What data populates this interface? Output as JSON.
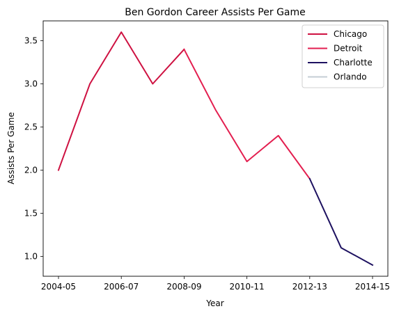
{
  "chart_data": {
    "type": "line",
    "title": "Ben Gordon Career Assists Per Game",
    "xlabel": "Year",
    "ylabel": "Assists Per Game",
    "x": [
      "2004-05",
      "2005-06",
      "2006-07",
      "2007-08",
      "2008-09",
      "2009-10",
      "2010-11",
      "2011-12",
      "2012-13",
      "2013-14",
      "2014-15"
    ],
    "x_ticks": [
      "2004-05",
      "2006-07",
      "2008-09",
      "2010-11",
      "2012-13",
      "2014-15"
    ],
    "y_ticks": [
      "1.0",
      "1.5",
      "2.0",
      "2.5",
      "3.0",
      "3.5"
    ],
    "ylim": [
      0.77,
      3.73
    ],
    "grid": false,
    "legend_position": "top-right",
    "series": [
      {
        "name": "Chicago",
        "color": "#ce1141",
        "x": [
          "2004-05",
          "2005-06",
          "2006-07",
          "2007-08",
          "2008-09"
        ],
        "values": [
          2.0,
          3.0,
          3.6,
          3.0,
          3.4
        ]
      },
      {
        "name": "Detroit",
        "color": "#e31e4f",
        "x": [
          "2008-09",
          "2009-10",
          "2010-11",
          "2011-12",
          "2012-13"
        ],
        "values": [
          3.4,
          2.7,
          2.1,
          2.4,
          1.9
        ]
      },
      {
        "name": "Charlotte",
        "color": "#1d1160",
        "x": [
          "2012-13",
          "2013-14",
          "2014-15"
        ],
        "values": [
          1.9,
          1.1,
          0.9
        ]
      },
      {
        "name": "Orlando",
        "color": "#c4ced4",
        "x": [],
        "values": []
      }
    ]
  }
}
